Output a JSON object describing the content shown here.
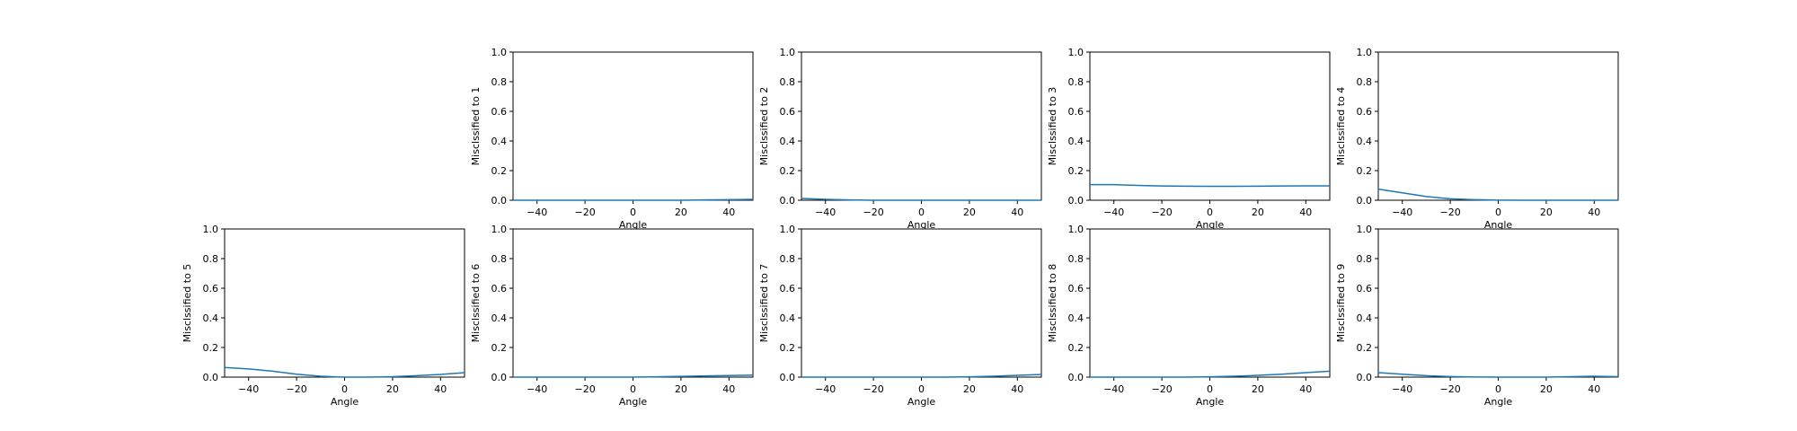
{
  "figure": {
    "line_color": "#1f77b4",
    "axis_color": "#000000",
    "background": "#ffffff"
  },
  "chart_data": [
    {
      "type": "line",
      "position": "row1-col2",
      "xlabel": "Angle",
      "ylabel": "Misclssified to 1",
      "xlim": [
        -50,
        50
      ],
      "ylim": [
        0,
        1
      ],
      "xticks": [
        -40,
        -20,
        0,
        20,
        40
      ],
      "yticks": [
        0.0,
        0.2,
        0.4,
        0.6,
        0.8,
        1.0
      ],
      "grid": false,
      "series": [
        {
          "x": [
            -50,
            -40,
            -30,
            -20,
            -10,
            0,
            10,
            20,
            30,
            40,
            50
          ],
          "values": [
            0.0,
            0.0,
            0.0,
            0.0,
            0.0,
            0.0,
            0.0,
            0.0,
            0.002,
            0.004,
            0.006
          ]
        }
      ]
    },
    {
      "type": "line",
      "position": "row1-col3",
      "xlabel": "Angle",
      "ylabel": "Misclssified to 2",
      "xlim": [
        -50,
        50
      ],
      "ylim": [
        0,
        1
      ],
      "xticks": [
        -40,
        -20,
        0,
        20,
        40
      ],
      "yticks": [
        0.0,
        0.2,
        0.4,
        0.6,
        0.8,
        1.0
      ],
      "grid": false,
      "series": [
        {
          "x": [
            -50,
            -40,
            -30,
            -20,
            -10,
            0,
            10,
            20,
            30,
            40,
            50
          ],
          "values": [
            0.012,
            0.006,
            0.002,
            0.0,
            0.0,
            0.0,
            0.0,
            0.0,
            0.0,
            0.0,
            0.0
          ]
        }
      ]
    },
    {
      "type": "line",
      "position": "row1-col4",
      "xlabel": "Angle",
      "ylabel": "Misclssified to 3",
      "xlim": [
        -50,
        50
      ],
      "ylim": [
        0,
        1
      ],
      "xticks": [
        -40,
        -20,
        0,
        20,
        40
      ],
      "yticks": [
        0.0,
        0.2,
        0.4,
        0.6,
        0.8,
        1.0
      ],
      "grid": false,
      "series": [
        {
          "x": [
            -50,
            -40,
            -30,
            -20,
            -10,
            0,
            10,
            20,
            30,
            40,
            50
          ],
          "values": [
            0.105,
            0.105,
            0.1,
            0.096,
            0.095,
            0.094,
            0.094,
            0.095,
            0.096,
            0.097,
            0.097
          ]
        }
      ]
    },
    {
      "type": "line",
      "position": "row1-col5",
      "xlabel": "Angle",
      "ylabel": "Misclssified to 4",
      "xlim": [
        -50,
        50
      ],
      "ylim": [
        0,
        1
      ],
      "xticks": [
        -40,
        -20,
        0,
        20,
        40
      ],
      "yticks": [
        0.0,
        0.2,
        0.4,
        0.6,
        0.8,
        1.0
      ],
      "grid": false,
      "series": [
        {
          "x": [
            -50,
            -40,
            -30,
            -20,
            -10,
            0,
            10,
            20,
            30,
            40,
            50
          ],
          "values": [
            0.075,
            0.05,
            0.025,
            0.01,
            0.004,
            0.001,
            0.0,
            0.0,
            0.0,
            0.0,
            0.0
          ]
        }
      ]
    },
    {
      "type": "line",
      "position": "row2-col1",
      "xlabel": "Angle",
      "ylabel": "Misclssified to 5",
      "xlim": [
        -50,
        50
      ],
      "ylim": [
        0,
        1
      ],
      "xticks": [
        -40,
        -20,
        0,
        20,
        40
      ],
      "yticks": [
        0.0,
        0.2,
        0.4,
        0.6,
        0.8,
        1.0
      ],
      "grid": false,
      "series": [
        {
          "x": [
            -50,
            -40,
            -30,
            -20,
            -10,
            0,
            10,
            20,
            30,
            40,
            50
          ],
          "values": [
            0.065,
            0.055,
            0.04,
            0.02,
            0.006,
            0.0,
            0.0,
            0.003,
            0.01,
            0.018,
            0.03
          ]
        }
      ]
    },
    {
      "type": "line",
      "position": "row2-col2",
      "xlabel": "Angle",
      "ylabel": "Misclssified to 6",
      "xlim": [
        -50,
        50
      ],
      "ylim": [
        0,
        1
      ],
      "xticks": [
        -40,
        -20,
        0,
        20,
        40
      ],
      "yticks": [
        0.0,
        0.2,
        0.4,
        0.6,
        0.8,
        1.0
      ],
      "grid": false,
      "series": [
        {
          "x": [
            -50,
            -40,
            -30,
            -20,
            -10,
            0,
            10,
            20,
            30,
            40,
            50
          ],
          "values": [
            0.0,
            0.0,
            0.0,
            0.0,
            0.0,
            0.0,
            0.002,
            0.005,
            0.008,
            0.011,
            0.014
          ]
        }
      ]
    },
    {
      "type": "line",
      "position": "row2-col3",
      "xlabel": "Angle",
      "ylabel": "Misclssified to 7",
      "xlim": [
        -50,
        50
      ],
      "ylim": [
        0,
        1
      ],
      "xticks": [
        -40,
        -20,
        0,
        20,
        40
      ],
      "yticks": [
        0.0,
        0.2,
        0.4,
        0.6,
        0.8,
        1.0
      ],
      "grid": false,
      "series": [
        {
          "x": [
            -50,
            -40,
            -30,
            -20,
            -10,
            0,
            10,
            20,
            30,
            40,
            50
          ],
          "values": [
            0.0,
            0.0,
            0.0,
            0.0,
            0.0,
            0.0,
            0.0,
            0.002,
            0.006,
            0.012,
            0.018
          ]
        }
      ]
    },
    {
      "type": "line",
      "position": "row2-col4",
      "xlabel": "Angle",
      "ylabel": "Misclssified to 8",
      "xlim": [
        -50,
        50
      ],
      "ylim": [
        0,
        1
      ],
      "xticks": [
        -40,
        -20,
        0,
        20,
        40
      ],
      "yticks": [
        0.0,
        0.2,
        0.4,
        0.6,
        0.8,
        1.0
      ],
      "grid": false,
      "series": [
        {
          "x": [
            -50,
            -40,
            -30,
            -20,
            -10,
            0,
            10,
            20,
            30,
            40,
            50
          ],
          "values": [
            0.0,
            0.0,
            0.0,
            0.0,
            0.0,
            0.002,
            0.006,
            0.012,
            0.02,
            0.03,
            0.04
          ]
        }
      ]
    },
    {
      "type": "line",
      "position": "row2-col5",
      "xlabel": "Angle",
      "ylabel": "Misclssified to 9",
      "xlim": [
        -50,
        50
      ],
      "ylim": [
        0,
        1
      ],
      "xticks": [
        -40,
        -20,
        0,
        20,
        40
      ],
      "yticks": [
        0.0,
        0.2,
        0.4,
        0.6,
        0.8,
        1.0
      ],
      "grid": false,
      "series": [
        {
          "x": [
            -50,
            -40,
            -30,
            -20,
            -10,
            0,
            10,
            20,
            30,
            40,
            50
          ],
          "values": [
            0.03,
            0.02,
            0.01,
            0.004,
            0.001,
            0.0,
            0.0,
            0.0,
            0.003,
            0.006,
            0.003
          ]
        }
      ]
    }
  ]
}
